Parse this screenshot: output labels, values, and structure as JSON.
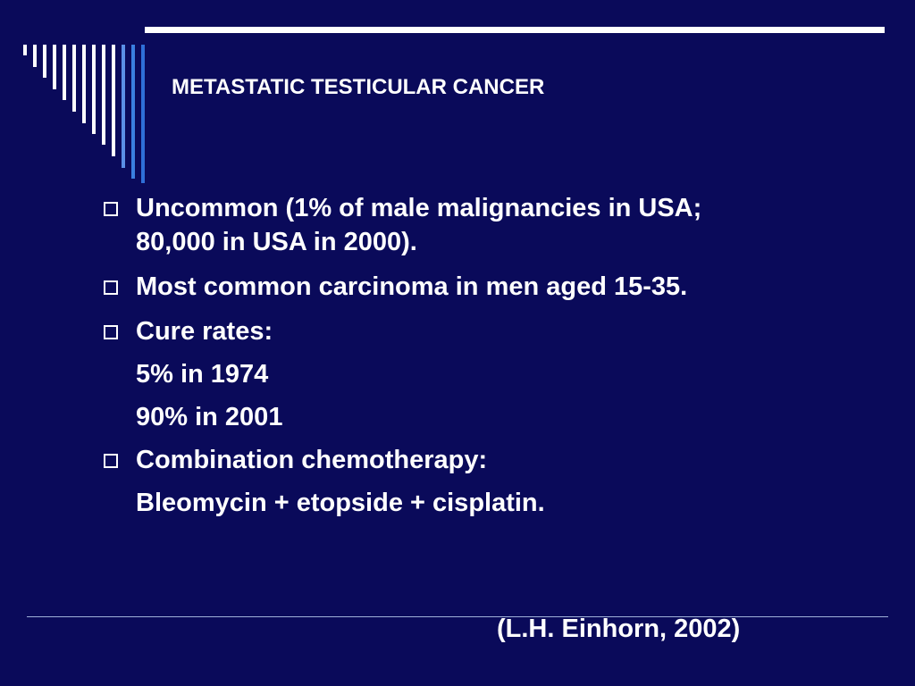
{
  "slide": {
    "title": "METASTATIC TESTICULAR CANCER",
    "bullets": [
      {
        "text": "Uncommon (1% of male malignancies in USA; 80,000 in USA in 2000)."
      },
      {
        "text": "Most common carcinoma in men aged 15-35."
      },
      {
        "text": "Cure rates:",
        "sub": [
          "5% in 1974",
          "90% in 2001"
        ]
      },
      {
        "text": "Combination chemotherapy:",
        "sub": [
          "Bleomycin + etopside + cisplatin."
        ]
      }
    ],
    "citation": "(L.H. Einhorn, 2002)"
  },
  "colors": {
    "background": "#0a0a5a",
    "text": "#ffffff",
    "accent": "#3a7fe0"
  }
}
